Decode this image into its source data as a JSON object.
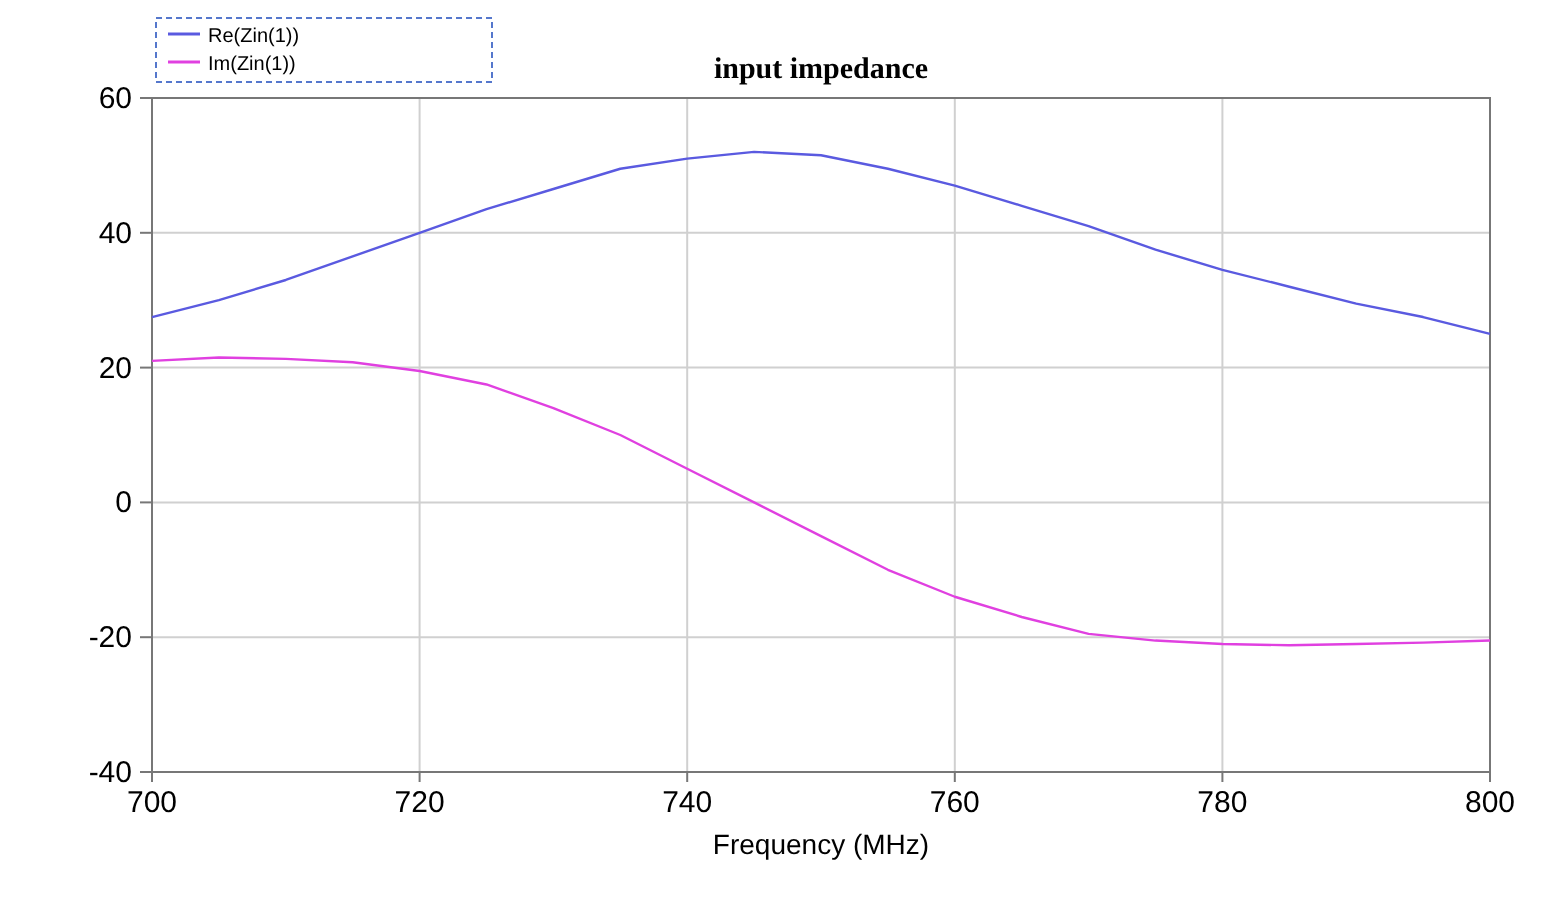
{
  "chart_data": {
    "type": "line",
    "title": "input impedance",
    "xlabel": "Frequency (MHz)",
    "xlim": [
      700,
      800
    ],
    "xticks": [
      700,
      720,
      740,
      760,
      780,
      800
    ],
    "ylim": [
      -40,
      60
    ],
    "yticks": [
      -40,
      -20,
      0,
      20,
      40,
      60
    ],
    "grid": true,
    "legend": "top left",
    "series": [
      {
        "name": "Re(Zin(1))",
        "color": "#5a5ae0",
        "x": [
          700,
          705,
          710,
          715,
          720,
          725,
          730,
          735,
          740,
          745,
          750,
          755,
          760,
          765,
          770,
          775,
          780,
          785,
          790,
          795,
          800
        ],
        "values": [
          27.5,
          30,
          33,
          36.5,
          40,
          43.5,
          46.5,
          49.5,
          51,
          52,
          51.5,
          49.5,
          47,
          44,
          41,
          37.5,
          34.5,
          32,
          29.5,
          27.5,
          25
        ]
      },
      {
        "name": "Im(Zin(1))",
        "color": "#e040e0",
        "x": [
          700,
          705,
          710,
          715,
          720,
          725,
          730,
          735,
          740,
          745,
          750,
          755,
          760,
          765,
          770,
          775,
          780,
          785,
          790,
          795,
          800
        ],
        "values": [
          21,
          21.5,
          21.3,
          20.8,
          19.5,
          17.5,
          14,
          10,
          5,
          0,
          -5,
          -10,
          -14,
          -17,
          -19.5,
          -20.5,
          -21,
          -21.2,
          -21,
          -20.8,
          -20.5
        ]
      }
    ]
  }
}
